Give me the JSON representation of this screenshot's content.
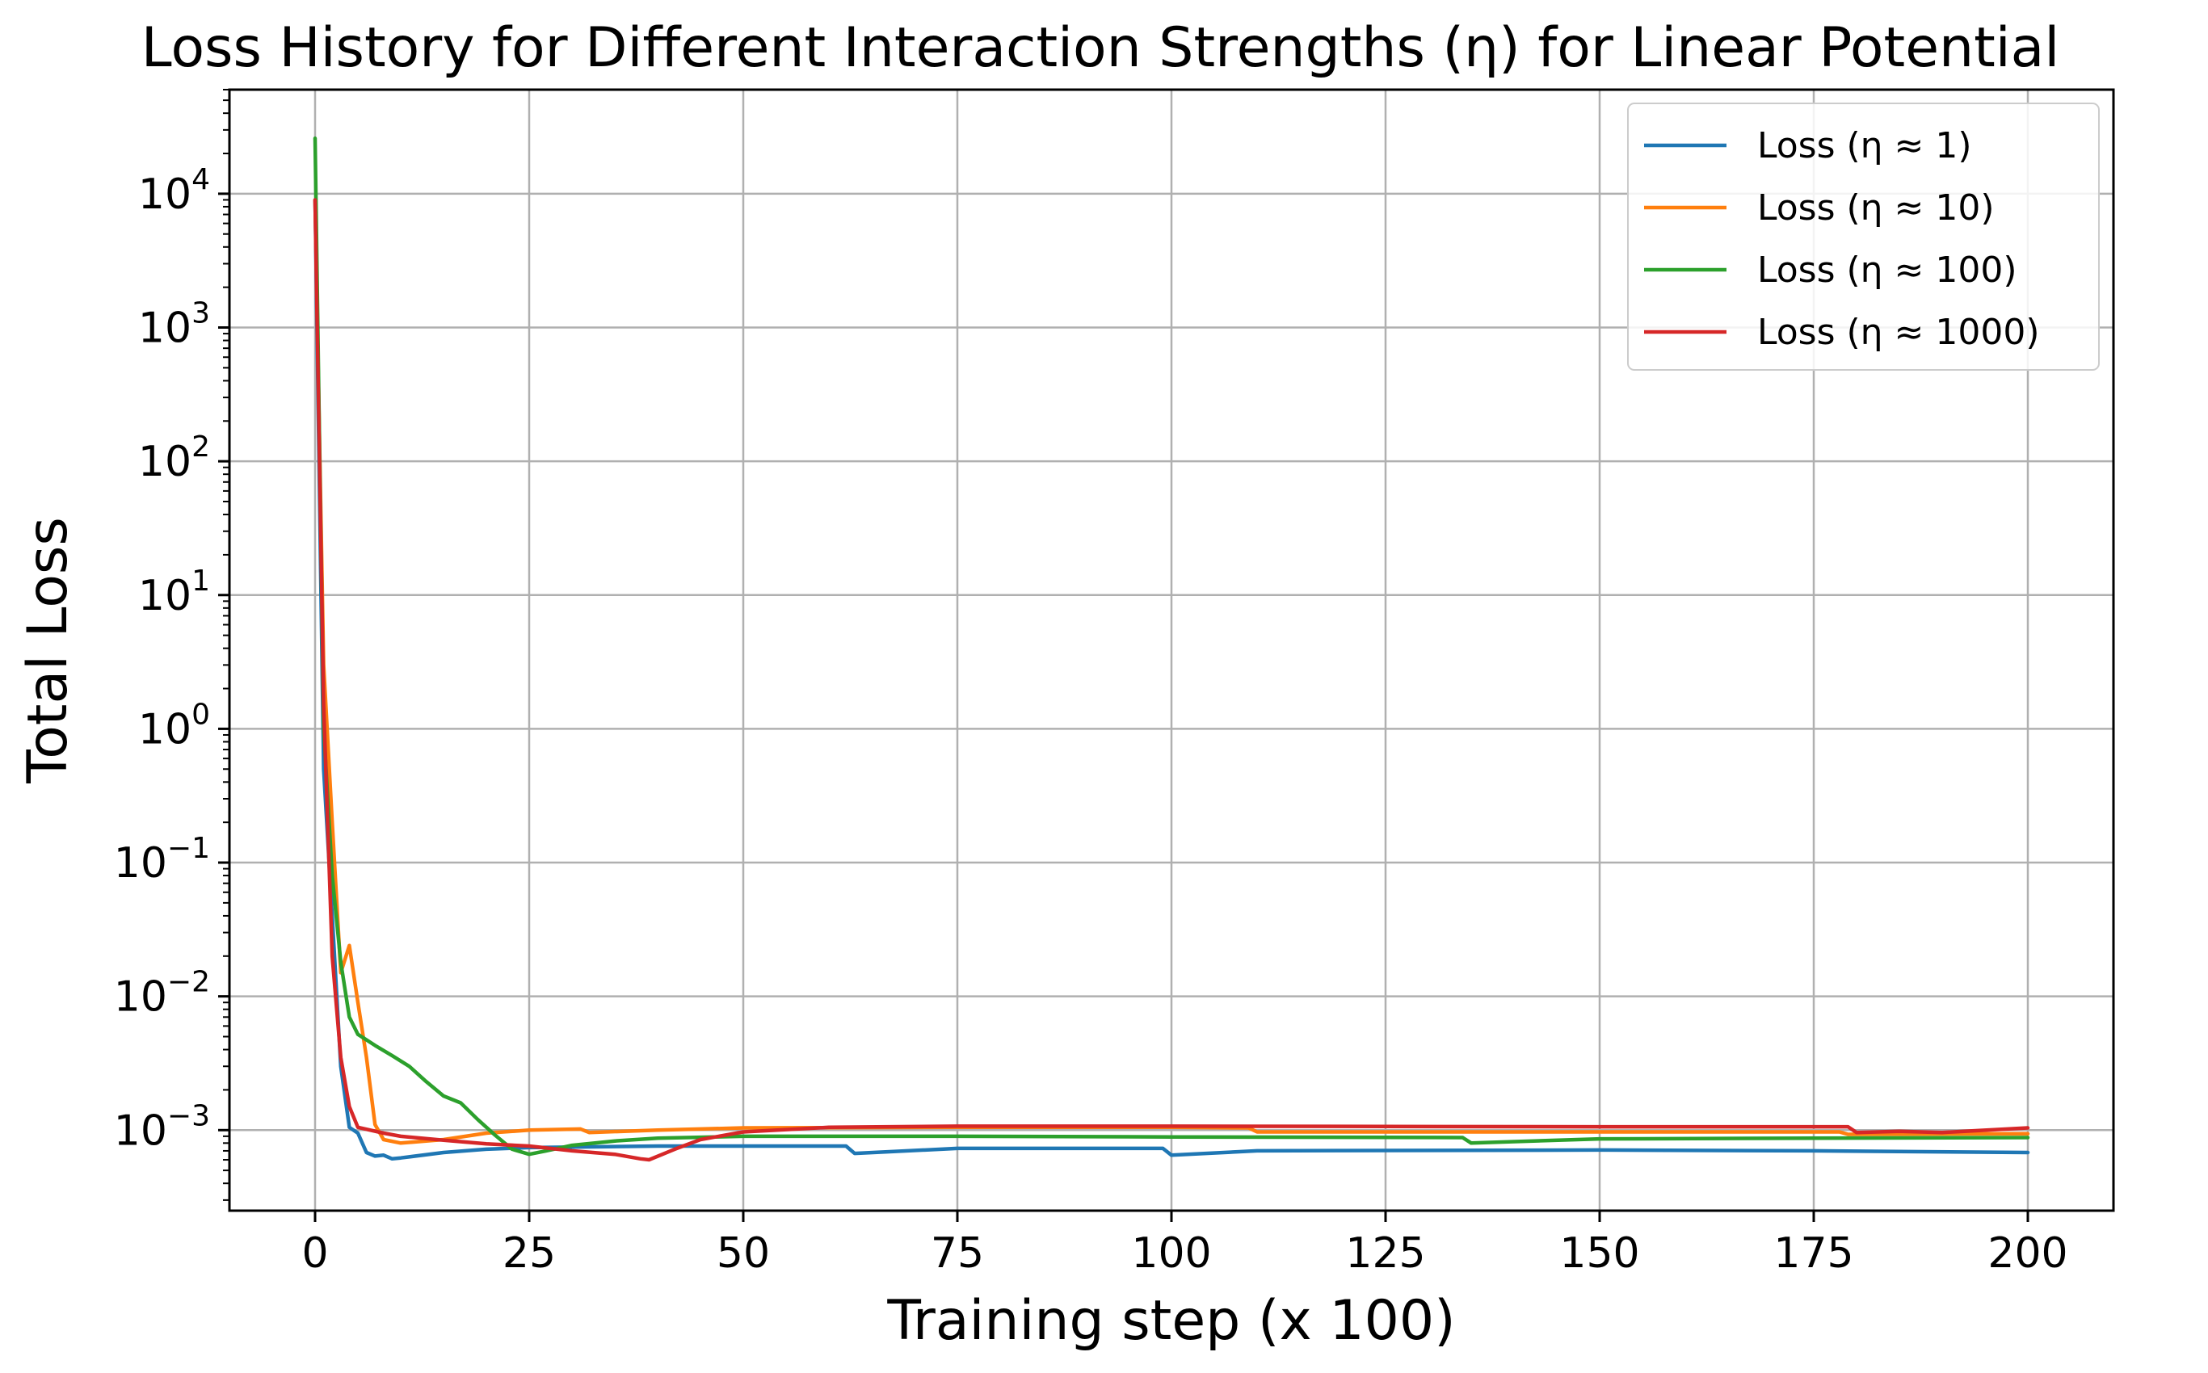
{
  "chart_data": {
    "type": "line",
    "title": "Loss History for Different Interaction Strengths (η) for Linear Potential",
    "xlabel": "Training step (x 100)",
    "ylabel": "Total Loss",
    "x_scale": "linear",
    "y_scale": "log",
    "xlim": [
      -10,
      210
    ],
    "ylim": [
      0.00025,
      60000
    ],
    "xticks": [
      0,
      25,
      50,
      75,
      100,
      125,
      150,
      175,
      200
    ],
    "xtick_labels": [
      "0",
      "25",
      "50",
      "75",
      "100",
      "125",
      "150",
      "175",
      "200"
    ],
    "yticks": [
      0.001,
      0.01,
      0.1,
      1,
      10,
      100,
      1000,
      10000
    ],
    "ytick_labels": [
      {
        "base": "10",
        "exp": "−3"
      },
      {
        "base": "10",
        "exp": "−2"
      },
      {
        "base": "10",
        "exp": "−1"
      },
      {
        "base": "10",
        "exp": "0"
      },
      {
        "base": "10",
        "exp": "1"
      },
      {
        "base": "10",
        "exp": "2"
      },
      {
        "base": "10",
        "exp": "3"
      },
      {
        "base": "10",
        "exp": "4"
      }
    ],
    "grid": true,
    "legend_position": "top-right",
    "series": [
      {
        "name": "Loss (η ≈ 1)",
        "color": "#1f77b4",
        "points": [
          [
            0,
            9000
          ],
          [
            1,
            0.5
          ],
          [
            2,
            0.04
          ],
          [
            3,
            0.003
          ],
          [
            4,
            0.00105
          ],
          [
            5,
            0.00095
          ],
          [
            6,
            0.00068
          ],
          [
            7,
            0.00064
          ],
          [
            8,
            0.00065
          ],
          [
            9,
            0.00061
          ],
          [
            10,
            0.00062
          ],
          [
            15,
            0.00068
          ],
          [
            20,
            0.00072
          ],
          [
            25,
            0.00074
          ],
          [
            40,
            0.00076
          ],
          [
            62,
            0.00076
          ],
          [
            63,
            0.00067
          ],
          [
            75,
            0.00073
          ],
          [
            99,
            0.00073
          ],
          [
            100,
            0.00065
          ],
          [
            110,
            0.0007
          ],
          [
            150,
            0.00071
          ],
          [
            175,
            0.0007
          ],
          [
            200,
            0.00068
          ]
        ]
      },
      {
        "name": "Loss (η ≈ 10)",
        "color": "#ff7f0e",
        "points": [
          [
            0,
            9000
          ],
          [
            1,
            3
          ],
          [
            2,
            0.2
          ],
          [
            3,
            0.015
          ],
          [
            4,
            0.024
          ],
          [
            5,
            0.009
          ],
          [
            6,
            0.0035
          ],
          [
            7,
            0.0011
          ],
          [
            8,
            0.00085
          ],
          [
            10,
            0.0008
          ],
          [
            15,
            0.00085
          ],
          [
            20,
            0.00095
          ],
          [
            25,
            0.001
          ],
          [
            31,
            0.00102
          ],
          [
            32,
            0.00096
          ],
          [
            40,
            0.001
          ],
          [
            50,
            0.00104
          ],
          [
            75,
            0.00105
          ],
          [
            100,
            0.00105
          ],
          [
            109,
            0.00104
          ],
          [
            110,
            0.00097
          ],
          [
            150,
            0.00097
          ],
          [
            178,
            0.00097
          ],
          [
            179,
            0.00093
          ],
          [
            200,
            0.00094
          ]
        ]
      },
      {
        "name": "Loss (η ≈ 100)",
        "color": "#2ca02c",
        "points": [
          [
            0,
            26000
          ],
          [
            1,
            1
          ],
          [
            2,
            0.08
          ],
          [
            3,
            0.018
          ],
          [
            4,
            0.007
          ],
          [
            5,
            0.0052
          ],
          [
            7,
            0.0043
          ],
          [
            9,
            0.0036
          ],
          [
            11,
            0.003
          ],
          [
            13,
            0.0023
          ],
          [
            15,
            0.0018
          ],
          [
            17,
            0.0016
          ],
          [
            19,
            0.0012
          ],
          [
            21,
            0.00092
          ],
          [
            23,
            0.00072
          ],
          [
            25,
            0.00066
          ],
          [
            27,
            0.0007
          ],
          [
            30,
            0.00077
          ],
          [
            35,
            0.00083
          ],
          [
            40,
            0.00087
          ],
          [
            50,
            0.0009
          ],
          [
            75,
            0.0009
          ],
          [
            100,
            0.00089
          ],
          [
            134,
            0.00088
          ],
          [
            135,
            0.0008
          ],
          [
            150,
            0.00086
          ],
          [
            175,
            0.00087
          ],
          [
            200,
            0.00088
          ]
        ]
      },
      {
        "name": "Loss (η ≈ 1000)",
        "color": "#d62728",
        "points": [
          [
            0,
            9000
          ],
          [
            1,
            1.5
          ],
          [
            2,
            0.02
          ],
          [
            3,
            0.0035
          ],
          [
            4,
            0.0015
          ],
          [
            5,
            0.00105
          ],
          [
            8,
            0.00095
          ],
          [
            10,
            0.0009
          ],
          [
            15,
            0.00084
          ],
          [
            20,
            0.00079
          ],
          [
            25,
            0.00076
          ],
          [
            30,
            0.0007
          ],
          [
            35,
            0.00066
          ],
          [
            38,
            0.00061
          ],
          [
            39,
            0.0006
          ],
          [
            42,
            0.00072
          ],
          [
            45,
            0.00085
          ],
          [
            50,
            0.00097
          ],
          [
            60,
            0.00105
          ],
          [
            75,
            0.00107
          ],
          [
            100,
            0.00107
          ],
          [
            150,
            0.00106
          ],
          [
            179,
            0.00106
          ],
          [
            180,
            0.00096
          ],
          [
            185,
            0.00098
          ],
          [
            190,
            0.00096
          ],
          [
            200,
            0.00104
          ]
        ]
      }
    ]
  }
}
